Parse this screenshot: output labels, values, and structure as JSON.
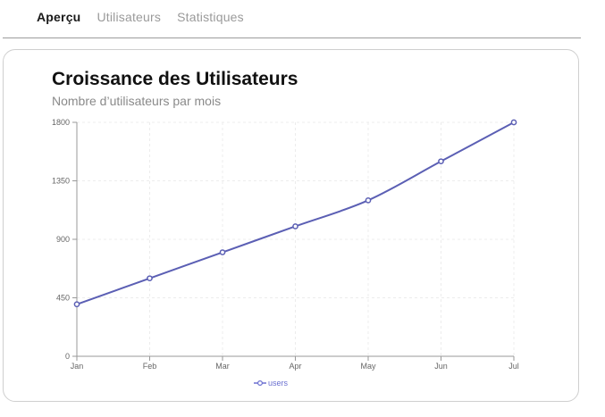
{
  "tabs": [
    {
      "label": "Aperçu",
      "active": true
    },
    {
      "label": "Utilisateurs",
      "active": false
    },
    {
      "label": "Statistiques",
      "active": false
    }
  ],
  "side_mark": "·",
  "colors": {
    "series": "#5b5fb4",
    "legend": "#6a6fd0",
    "grid": "#ececec",
    "axis": "#999999"
  },
  "chart_data": {
    "type": "line",
    "title": "Croissance des Utilisateurs",
    "subtitle": "Nombre d’utilisateurs par mois",
    "categories": [
      "Jan",
      "Feb",
      "Mar",
      "Apr",
      "May",
      "Jun",
      "Jul"
    ],
    "series": [
      {
        "name": "users",
        "values": [
          400,
          600,
          800,
          1000,
          1200,
          1500,
          1800
        ]
      }
    ],
    "y_ticks": [
      0,
      450,
      900,
      1350,
      1800
    ],
    "ylim": [
      0,
      1800
    ],
    "grid": true,
    "legend": "bottom"
  }
}
